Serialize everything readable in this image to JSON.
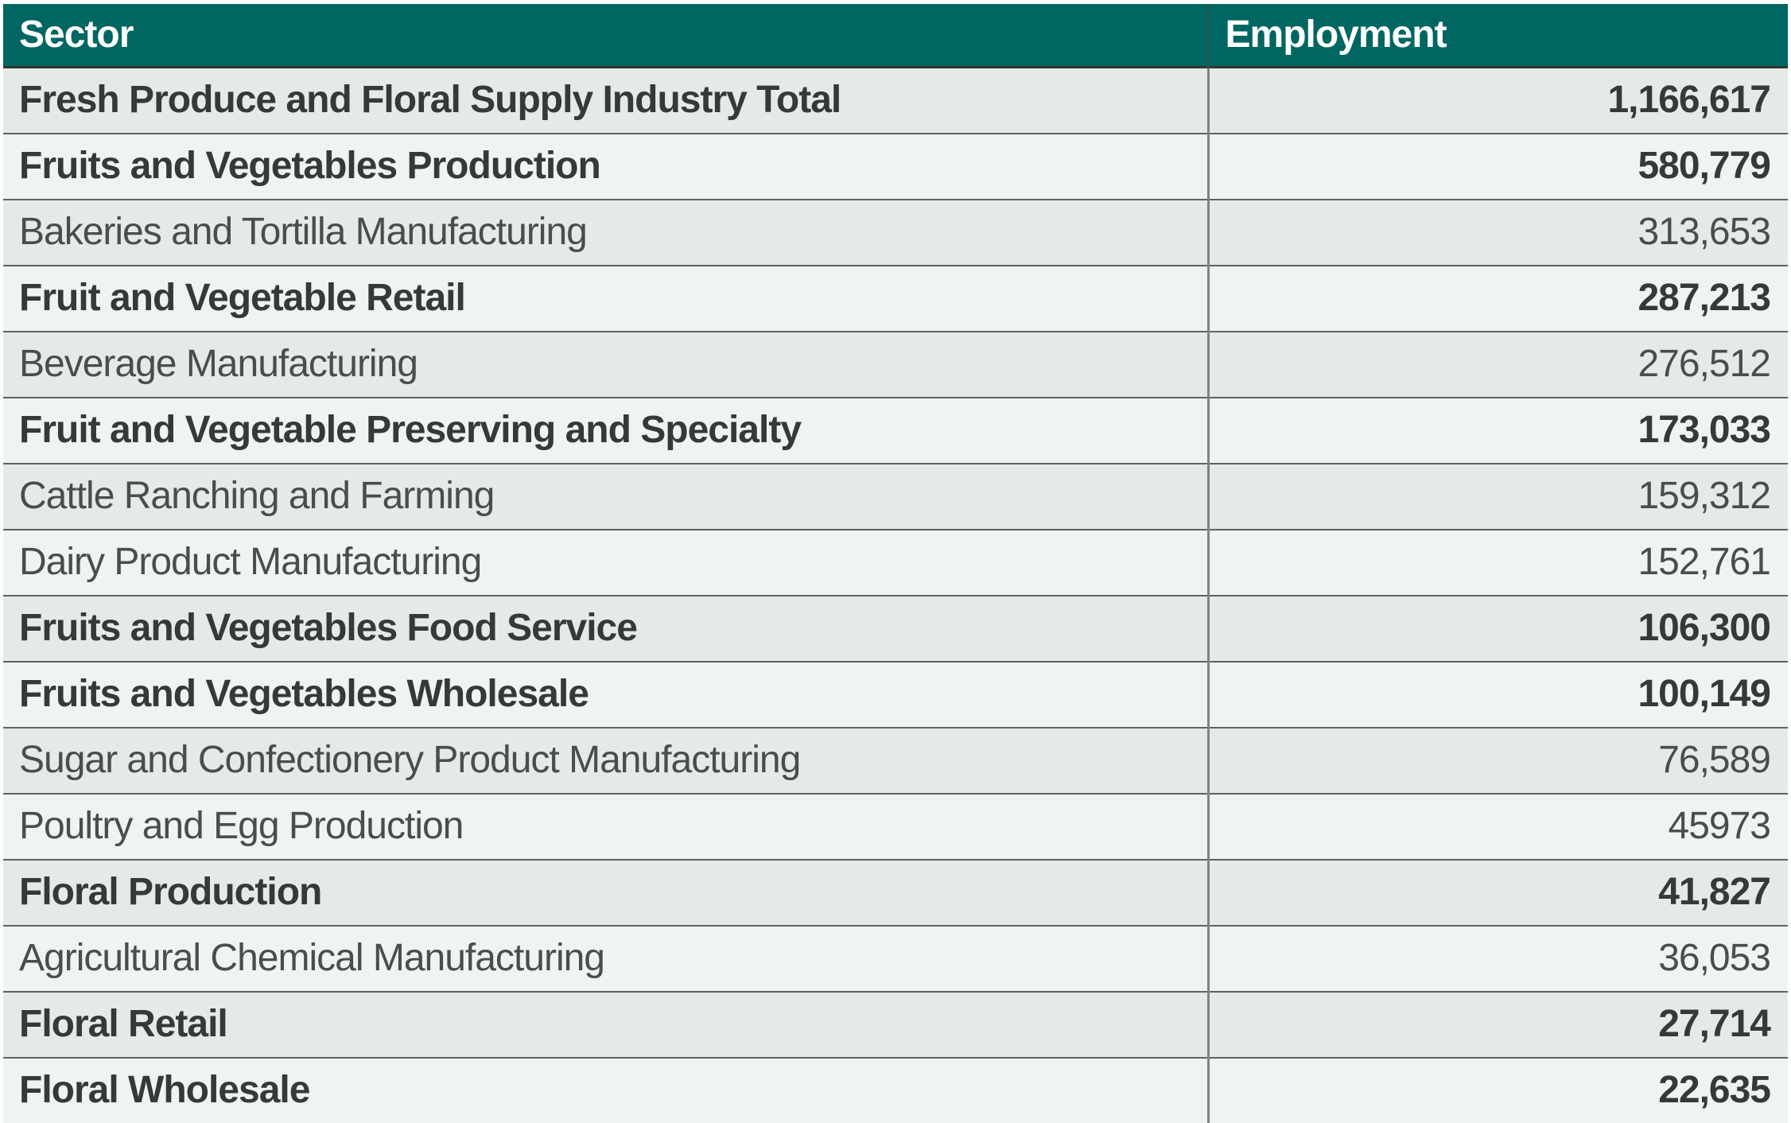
{
  "chart_data": {
    "type": "table",
    "columns": [
      "Sector",
      "Employment"
    ],
    "rows": [
      {
        "sector": "Fresh Produce and Floral Supply Industry Total",
        "employment": "1,166,617",
        "employment_value": 1166617,
        "bold": true
      },
      {
        "sector": "Fruits and Vegetables Production",
        "employment": "580,779",
        "employment_value": 580779,
        "bold": true
      },
      {
        "sector": "Bakeries and Tortilla Manufacturing",
        "employment": "313,653",
        "employment_value": 313653,
        "bold": false
      },
      {
        "sector": "Fruit and Vegetable Retail",
        "employment": "287,213",
        "employment_value": 287213,
        "bold": true
      },
      {
        "sector": "Beverage Manufacturing",
        "employment": "276,512",
        "employment_value": 276512,
        "bold": false
      },
      {
        "sector": "Fruit and Vegetable Preserving and Specialty",
        "employment": "173,033",
        "employment_value": 173033,
        "bold": true
      },
      {
        "sector": "Cattle Ranching and Farming",
        "employment": "159,312",
        "employment_value": 159312,
        "bold": false
      },
      {
        "sector": "Dairy Product Manufacturing",
        "employment": "152,761",
        "employment_value": 152761,
        "bold": false
      },
      {
        "sector": "Fruits and Vegetables Food Service",
        "employment": "106,300",
        "employment_value": 106300,
        "bold": true
      },
      {
        "sector": "Fruits and Vegetables Wholesale",
        "employment": "100,149",
        "employment_value": 100149,
        "bold": true
      },
      {
        "sector": "Sugar and Confectionery Product Manufacturing",
        "employment": "76,589",
        "employment_value": 76589,
        "bold": false
      },
      {
        "sector": "Poultry and Egg Production",
        "employment": "45973",
        "employment_value": 45973,
        "bold": false
      },
      {
        "sector": "Floral Production",
        "employment": "41,827",
        "employment_value": 41827,
        "bold": true
      },
      {
        "sector": "Agricultural Chemical Manufacturing",
        "employment": "36,053",
        "employment_value": 36053,
        "bold": false
      },
      {
        "sector": "Floral Retail",
        "employment": "27,714",
        "employment_value": 27714,
        "bold": true
      },
      {
        "sector": "Floral Wholesale",
        "employment": "22,635",
        "employment_value": 22635,
        "bold": true
      }
    ]
  },
  "colors": {
    "page_bg": "#ffffff",
    "header_bg": "#006661",
    "header_text": "#ffffff",
    "header_divider": "#275551",
    "header_bottom_border": "#2d3732",
    "row_dark_bg": "#e5eae6",
    "row_light_bg": "#f0f4f1",
    "row_border": "#5c635f",
    "divider": "#7d8581",
    "text_bold": "#363839",
    "text_regular": "#4a4c4d"
  }
}
